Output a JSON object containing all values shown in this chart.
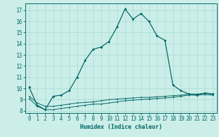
{
  "xlabel": "Humidex (Indice chaleur)",
  "xlim": [
    -0.5,
    23.5
  ],
  "ylim": [
    7.8,
    17.6
  ],
  "yticks": [
    8,
    9,
    10,
    11,
    12,
    13,
    14,
    15,
    16,
    17
  ],
  "xticks": [
    0,
    1,
    2,
    3,
    4,
    5,
    6,
    7,
    8,
    9,
    10,
    11,
    12,
    13,
    14,
    15,
    16,
    17,
    18,
    19,
    20,
    21,
    22,
    23
  ],
  "bg_color": "#cceee8",
  "grid_color": "#aaddda",
  "line_color": "#006666",
  "x": [
    0,
    1,
    2,
    3,
    4,
    5,
    6,
    7,
    8,
    9,
    10,
    11,
    12,
    13,
    14,
    15,
    16,
    17,
    18,
    19,
    20,
    21,
    22,
    23
  ],
  "y_main": [
    10.1,
    8.5,
    8.1,
    9.3,
    9.4,
    9.8,
    11.0,
    12.5,
    13.5,
    13.7,
    14.2,
    15.5,
    17.1,
    16.2,
    16.7,
    16.0,
    14.7,
    14.3,
    10.3,
    9.8,
    9.5,
    9.4,
    9.6,
    9.5
  ],
  "y_line2": [
    9.1,
    8.4,
    8.1,
    8.1,
    8.2,
    8.3,
    8.4,
    8.5,
    8.6,
    8.6,
    8.7,
    8.8,
    8.9,
    8.95,
    9.0,
    9.05,
    9.1,
    9.15,
    9.2,
    9.3,
    9.4,
    9.4,
    9.45,
    9.4
  ],
  "y_line3": [
    9.3,
    8.7,
    8.4,
    8.4,
    8.5,
    8.6,
    8.7,
    8.75,
    8.8,
    8.9,
    9.0,
    9.05,
    9.1,
    9.15,
    9.2,
    9.2,
    9.25,
    9.3,
    9.35,
    9.4,
    9.5,
    9.5,
    9.55,
    9.5
  ]
}
